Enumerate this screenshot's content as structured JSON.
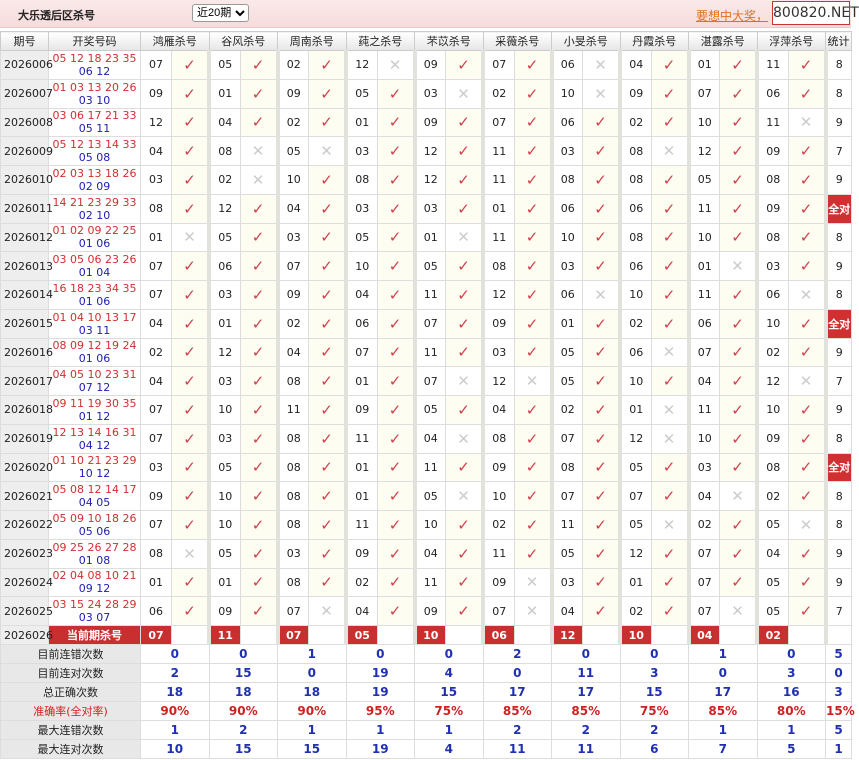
{
  "header": {
    "title": "大乐透后区杀号",
    "period_select": "近20期",
    "promo_link": "要想中大奖，",
    "logo": "800820.NET"
  },
  "columns": [
    "期号",
    "开奖号码",
    "鸿雁杀号",
    "谷风杀号",
    "周南杀号",
    "莼之杀号",
    "芣苡杀号",
    "采薇杀号",
    "小旻杀号",
    "丹霞杀号",
    "湛露杀号",
    "浮萍杀号",
    "统计"
  ],
  "marks": {
    "hit": "✓",
    "miss": "✕"
  },
  "colors": {
    "accent": "#d03030",
    "red_ball": "#d03030",
    "blue_ball": "#2020b0"
  },
  "rows": [
    {
      "period": "2026006",
      "red": "05 12 18 23 35",
      "blue": "06 12",
      "kills": [
        [
          "07",
          1
        ],
        [
          "05",
          1
        ],
        [
          "02",
          1
        ],
        [
          "12",
          0
        ],
        [
          "09",
          1
        ],
        [
          "07",
          1
        ],
        [
          "06",
          0
        ],
        [
          "04",
          1
        ],
        [
          "01",
          1
        ],
        [
          "11",
          1
        ]
      ],
      "stat": "8"
    },
    {
      "period": "2026007",
      "red": "01 03 13 20 26",
      "blue": "03 10",
      "kills": [
        [
          "09",
          1
        ],
        [
          "01",
          1
        ],
        [
          "09",
          1
        ],
        [
          "05",
          1
        ],
        [
          "03",
          0
        ],
        [
          "02",
          1
        ],
        [
          "10",
          0
        ],
        [
          "09",
          1
        ],
        [
          "07",
          1
        ],
        [
          "06",
          1
        ]
      ],
      "stat": "8"
    },
    {
      "period": "2026008",
      "red": "03 06 17 21 33",
      "blue": "05 11",
      "kills": [
        [
          "12",
          1
        ],
        [
          "04",
          1
        ],
        [
          "02",
          1
        ],
        [
          "01",
          1
        ],
        [
          "09",
          1
        ],
        [
          "07",
          1
        ],
        [
          "06",
          1
        ],
        [
          "02",
          1
        ],
        [
          "10",
          1
        ],
        [
          "11",
          0
        ]
      ],
      "stat": "9"
    },
    {
      "period": "2026009",
      "red": "05 12 13 14 33",
      "blue": "05 08",
      "kills": [
        [
          "04",
          1
        ],
        [
          "08",
          0
        ],
        [
          "05",
          0
        ],
        [
          "03",
          1
        ],
        [
          "12",
          1
        ],
        [
          "11",
          1
        ],
        [
          "03",
          1
        ],
        [
          "08",
          0
        ],
        [
          "12",
          1
        ],
        [
          "09",
          1
        ]
      ],
      "stat": "7"
    },
    {
      "period": "2026010",
      "red": "02 03 13 18 26",
      "blue": "02 09",
      "kills": [
        [
          "03",
          1
        ],
        [
          "02",
          0
        ],
        [
          "10",
          1
        ],
        [
          "08",
          1
        ],
        [
          "12",
          1
        ],
        [
          "11",
          1
        ],
        [
          "08",
          1
        ],
        [
          "08",
          1
        ],
        [
          "05",
          1
        ],
        [
          "08",
          1
        ]
      ],
      "stat": "9"
    },
    {
      "period": "2026011",
      "red": "14 21 23 29 33",
      "blue": "02 10",
      "kills": [
        [
          "08",
          1
        ],
        [
          "12",
          1
        ],
        [
          "04",
          1
        ],
        [
          "03",
          1
        ],
        [
          "03",
          1
        ],
        [
          "01",
          1
        ],
        [
          "06",
          1
        ],
        [
          "06",
          1
        ],
        [
          "11",
          1
        ],
        [
          "09",
          1
        ]
      ],
      "stat": "全对"
    },
    {
      "period": "2026012",
      "red": "01 02 09 22 25",
      "blue": "01 06",
      "kills": [
        [
          "01",
          0
        ],
        [
          "05",
          1
        ],
        [
          "03",
          1
        ],
        [
          "05",
          1
        ],
        [
          "01",
          0
        ],
        [
          "11",
          1
        ],
        [
          "10",
          1
        ],
        [
          "08",
          1
        ],
        [
          "10",
          1
        ],
        [
          "08",
          1
        ]
      ],
      "stat": "8"
    },
    {
      "period": "2026013",
      "red": "03 05 06 23 26",
      "blue": "01 04",
      "kills": [
        [
          "07",
          1
        ],
        [
          "06",
          1
        ],
        [
          "07",
          1
        ],
        [
          "10",
          1
        ],
        [
          "05",
          1
        ],
        [
          "08",
          1
        ],
        [
          "03",
          1
        ],
        [
          "06",
          1
        ],
        [
          "01",
          0
        ],
        [
          "03",
          1
        ]
      ],
      "stat": "9"
    },
    {
      "period": "2026014",
      "red": "16 18 23 34 35",
      "blue": "01 06",
      "kills": [
        [
          "07",
          1
        ],
        [
          "03",
          1
        ],
        [
          "09",
          1
        ],
        [
          "04",
          1
        ],
        [
          "11",
          1
        ],
        [
          "12",
          1
        ],
        [
          "06",
          0
        ],
        [
          "10",
          1
        ],
        [
          "11",
          1
        ],
        [
          "06",
          0
        ]
      ],
      "stat": "8"
    },
    {
      "period": "2026015",
      "red": "01 04 10 13 17",
      "blue": "03 11",
      "kills": [
        [
          "04",
          1
        ],
        [
          "01",
          1
        ],
        [
          "02",
          1
        ],
        [
          "06",
          1
        ],
        [
          "07",
          1
        ],
        [
          "09",
          1
        ],
        [
          "01",
          1
        ],
        [
          "02",
          1
        ],
        [
          "06",
          1
        ],
        [
          "10",
          1
        ]
      ],
      "stat": "全对"
    },
    {
      "period": "2026016",
      "red": "08 09 12 19 24",
      "blue": "01 06",
      "kills": [
        [
          "02",
          1
        ],
        [
          "12",
          1
        ],
        [
          "04",
          1
        ],
        [
          "07",
          1
        ],
        [
          "11",
          1
        ],
        [
          "03",
          1
        ],
        [
          "05",
          1
        ],
        [
          "06",
          0
        ],
        [
          "07",
          1
        ],
        [
          "02",
          1
        ]
      ],
      "stat": "9"
    },
    {
      "period": "2026017",
      "red": "04 05 10 23 31",
      "blue": "07 12",
      "kills": [
        [
          "04",
          1
        ],
        [
          "03",
          1
        ],
        [
          "08",
          1
        ],
        [
          "01",
          1
        ],
        [
          "07",
          0
        ],
        [
          "12",
          0
        ],
        [
          "05",
          1
        ],
        [
          "10",
          1
        ],
        [
          "04",
          1
        ],
        [
          "12",
          0
        ]
      ],
      "stat": "7"
    },
    {
      "period": "2026018",
      "red": "09 11 19 30 35",
      "blue": "01 12",
      "kills": [
        [
          "07",
          1
        ],
        [
          "10",
          1
        ],
        [
          "11",
          1
        ],
        [
          "09",
          1
        ],
        [
          "05",
          1
        ],
        [
          "04",
          1
        ],
        [
          "02",
          1
        ],
        [
          "01",
          0
        ],
        [
          "11",
          1
        ],
        [
          "10",
          1
        ]
      ],
      "stat": "9"
    },
    {
      "period": "2026019",
      "red": "12 13 14 16 31",
      "blue": "04 12",
      "kills": [
        [
          "07",
          1
        ],
        [
          "03",
          1
        ],
        [
          "08",
          1
        ],
        [
          "11",
          1
        ],
        [
          "04",
          0
        ],
        [
          "08",
          1
        ],
        [
          "07",
          1
        ],
        [
          "12",
          0
        ],
        [
          "10",
          1
        ],
        [
          "09",
          1
        ]
      ],
      "stat": "8"
    },
    {
      "period": "2026020",
      "red": "01 10 21 23 29",
      "blue": "10 12",
      "kills": [
        [
          "03",
          1
        ],
        [
          "05",
          1
        ],
        [
          "08",
          1
        ],
        [
          "01",
          1
        ],
        [
          "11",
          1
        ],
        [
          "09",
          1
        ],
        [
          "08",
          1
        ],
        [
          "05",
          1
        ],
        [
          "03",
          1
        ],
        [
          "08",
          1
        ]
      ],
      "stat": "全对"
    },
    {
      "period": "2026021",
      "red": "05 08 12 14 17",
      "blue": "04 05",
      "kills": [
        [
          "09",
          1
        ],
        [
          "10",
          1
        ],
        [
          "08",
          1
        ],
        [
          "01",
          1
        ],
        [
          "05",
          0
        ],
        [
          "10",
          1
        ],
        [
          "07",
          1
        ],
        [
          "07",
          1
        ],
        [
          "04",
          0
        ],
        [
          "02",
          1
        ]
      ],
      "stat": "8"
    },
    {
      "period": "2026022",
      "red": "05 09 10 18 26",
      "blue": "05 06",
      "kills": [
        [
          "07",
          1
        ],
        [
          "10",
          1
        ],
        [
          "08",
          1
        ],
        [
          "11",
          1
        ],
        [
          "10",
          1
        ],
        [
          "02",
          1
        ],
        [
          "11",
          1
        ],
        [
          "05",
          0
        ],
        [
          "02",
          1
        ],
        [
          "05",
          0
        ]
      ],
      "stat": "8"
    },
    {
      "period": "2026023",
      "red": "09 25 26 27 28",
      "blue": "01 08",
      "kills": [
        [
          "08",
          0
        ],
        [
          "05",
          1
        ],
        [
          "03",
          1
        ],
        [
          "09",
          1
        ],
        [
          "04",
          1
        ],
        [
          "11",
          1
        ],
        [
          "05",
          1
        ],
        [
          "12",
          1
        ],
        [
          "07",
          1
        ],
        [
          "04",
          1
        ]
      ],
      "stat": "9"
    },
    {
      "period": "2026024",
      "red": "02 04 08 10 21",
      "blue": "09 12",
      "kills": [
        [
          "01",
          1
        ],
        [
          "01",
          1
        ],
        [
          "08",
          1
        ],
        [
          "02",
          1
        ],
        [
          "11",
          1
        ],
        [
          "09",
          0
        ],
        [
          "03",
          1
        ],
        [
          "01",
          1
        ],
        [
          "07",
          1
        ],
        [
          "05",
          1
        ]
      ],
      "stat": "9"
    },
    {
      "period": "2026025",
      "red": "03 15 24 28 29",
      "blue": "03 07",
      "kills": [
        [
          "06",
          1
        ],
        [
          "09",
          1
        ],
        [
          "07",
          0
        ],
        [
          "04",
          1
        ],
        [
          "09",
          1
        ],
        [
          "07",
          0
        ],
        [
          "04",
          1
        ],
        [
          "02",
          1
        ],
        [
          "07",
          0
        ],
        [
          "05",
          1
        ]
      ],
      "stat": "7"
    }
  ],
  "current": {
    "period": "2026026",
    "label": "当前期杀号",
    "kills": [
      "07",
      "11",
      "07",
      "05",
      "10",
      "06",
      "12",
      "10",
      "04",
      "02"
    ]
  },
  "stats": [
    {
      "label": "目前连错次数",
      "values": [
        "0",
        "0",
        "1",
        "0",
        "0",
        "2",
        "0",
        "0",
        "1",
        "0",
        "5"
      ]
    },
    {
      "label": "目前连对次数",
      "values": [
        "2",
        "15",
        "0",
        "19",
        "4",
        "0",
        "11",
        "3",
        "0",
        "3",
        "0"
      ]
    },
    {
      "label": "总正确次数",
      "values": [
        "18",
        "18",
        "18",
        "19",
        "15",
        "17",
        "17",
        "15",
        "17",
        "16",
        "3"
      ]
    },
    {
      "label": "准确率(全对率)",
      "values": [
        "90%",
        "90%",
        "90%",
        "95%",
        "75%",
        "85%",
        "85%",
        "75%",
        "85%",
        "80%",
        "15%"
      ],
      "rate": true
    },
    {
      "label": "最大连错次数",
      "values": [
        "1",
        "2",
        "1",
        "1",
        "1",
        "2",
        "2",
        "2",
        "1",
        "1",
        "5"
      ]
    },
    {
      "label": "最大连对次数",
      "values": [
        "10",
        "15",
        "15",
        "19",
        "4",
        "11",
        "11",
        "6",
        "7",
        "5",
        "1"
      ]
    }
  ]
}
